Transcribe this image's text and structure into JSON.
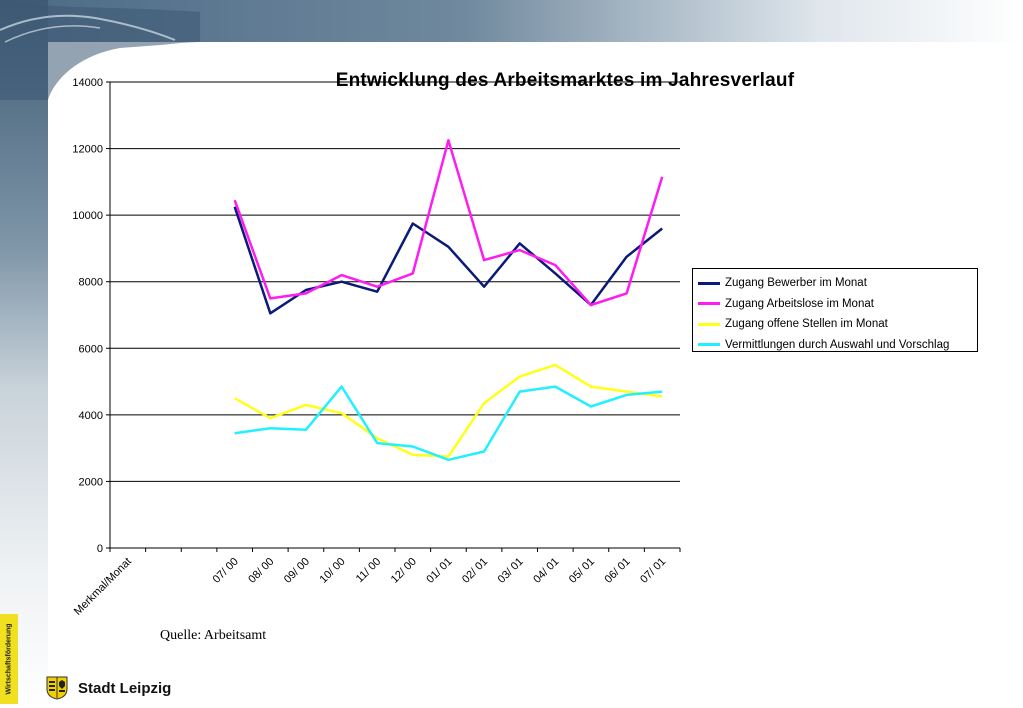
{
  "title": "Entwicklung des Arbeitsmarktes im Jahresverlauf",
  "source_note": "Quelle: Arbeitsamt",
  "side_tag": "Wirtschaftsförderung",
  "brand_name": "Stadt Leipzig",
  "chart_data": {
    "type": "line",
    "categories": [
      "Merkmal/Monat",
      "",
      "",
      "07/ 00",
      "08/ 00",
      "09/ 00",
      "10/ 00",
      "11/ 00",
      "12/ 00",
      "01/ 01",
      "02/ 01",
      "03/ 01",
      "04/ 01",
      "05/ 01",
      "06/ 01",
      "07/ 01"
    ],
    "ylim": [
      0,
      14000
    ],
    "yticks": [
      0,
      2000,
      4000,
      6000,
      8000,
      10000,
      12000,
      14000
    ],
    "grid": true,
    "legend_position": "right",
    "series": [
      {
        "name": "Zugang Bewerber im Monat",
        "color": "#0a1a78",
        "values": [
          null,
          null,
          null,
          10250,
          7050,
          7750,
          8000,
          7700,
          9750,
          9050,
          7850,
          9150,
          8250,
          7300,
          8750,
          9600
        ]
      },
      {
        "name": "Zugang Arbeitslose im Monat",
        "color": "#ff1cf0",
        "values": [
          null,
          null,
          null,
          10450,
          7500,
          7650,
          8200,
          7850,
          8250,
          12250,
          8650,
          8950,
          8500,
          7300,
          7650,
          11150
        ]
      },
      {
        "name": "Zugang offene Stellen im Monat",
        "color": "#ffff1a",
        "values": [
          null,
          null,
          null,
          4500,
          3900,
          4300,
          4050,
          3300,
          2800,
          2750,
          4350,
          5150,
          5500,
          4850,
          4700,
          4550
        ]
      },
      {
        "name": "Vermittlungen durch Auswahl und Vorschlag",
        "color": "#22f0ff",
        "values": [
          null,
          null,
          null,
          3450,
          3600,
          3550,
          4850,
          3150,
          3050,
          2650,
          2900,
          4700,
          4850,
          4250,
          4600,
          4700
        ]
      }
    ]
  }
}
